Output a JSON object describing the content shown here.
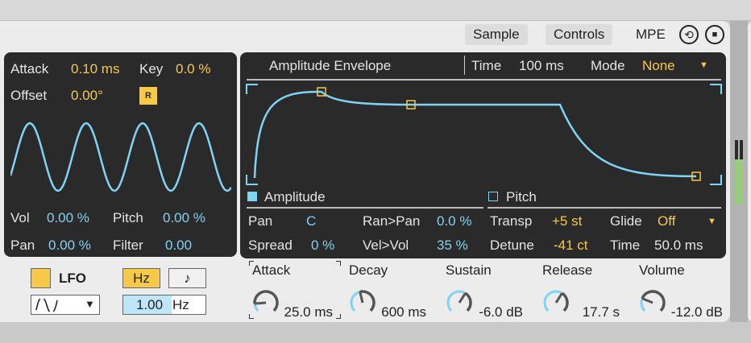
{
  "colors": {
    "accent_yellow": "#f7c948",
    "accent_blue": "#7fd3f5",
    "panel": "#2a2a2a"
  },
  "tabs": [
    {
      "label": "Sample"
    },
    {
      "label": "Controls"
    },
    {
      "label": "MPE"
    }
  ],
  "header_icons": [
    "hot-swap-icon",
    "save-preset-icon"
  ],
  "lfo": {
    "attack_label": "Attack",
    "attack_value": "0.10 ms",
    "key_label": "Key",
    "key_value": "0.0 %",
    "offset_label": "Offset",
    "offset_value": "0.00°",
    "retrigger_label": "R",
    "vol_label": "Vol",
    "vol_value": "0.00 %",
    "pitch_label": "Pitch",
    "pitch_value": "0.00 %",
    "pan_label": "Pan",
    "pan_value": "0.00 %",
    "filter_label": "Filter",
    "filter_value": "0.00",
    "enable_label": "LFO",
    "hz_label": "Hz",
    "sync_label": "♪",
    "waveform": "sine",
    "rate_value": "1.00",
    "rate_unit": "Hz"
  },
  "envelope": {
    "title": "Amplitude Envelope",
    "time_label": "Time",
    "time_value": "100 ms",
    "mode_label": "Mode",
    "mode_value": "None",
    "amplitude_label": "Amplitude",
    "pitch_label": "Pitch",
    "pan_label": "Pan",
    "pan_value": "C",
    "ranpan_label": "Ran>Pan",
    "ranpan_value": "0.0 %",
    "spread_label": "Spread",
    "spread_value": "0 %",
    "velvol_label": "Vel>Vol",
    "velvol_value": "35 %",
    "transp_label": "Transp",
    "transp_value": "+5 st",
    "glide_label": "Glide",
    "glide_value": "Off",
    "detune_label": "Detune",
    "detune_value": "-41 ct",
    "gtime_label": "Time",
    "gtime_value": "50.0 ms"
  },
  "knobs": [
    {
      "label": "Attack",
      "value": "25.0 ms",
      "level": 0.15
    },
    {
      "label": "Decay",
      "value": "600 ms",
      "level": 0.45
    },
    {
      "label": "Sustain",
      "value": "-6.0 dB",
      "level": 0.62
    },
    {
      "label": "Release",
      "value": "17.7 s",
      "level": 0.62
    },
    {
      "label": "Volume",
      "value": "-12.0 dB",
      "level": 0.25
    }
  ]
}
